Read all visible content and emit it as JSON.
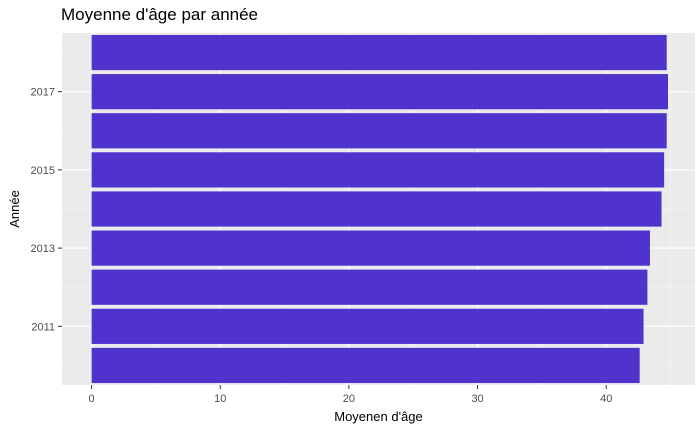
{
  "chart_data": {
    "type": "bar",
    "orientation": "horizontal",
    "title": "Moyenne d'âge par année",
    "xlabel": "Moyenen d'âge",
    "ylabel": "Année",
    "categories": [
      "2010",
      "2011",
      "2012",
      "2013",
      "2014",
      "2015",
      "2016",
      "2017",
      "2018"
    ],
    "values": [
      42.6,
      42.9,
      43.2,
      43.4,
      44.3,
      44.5,
      44.7,
      44.8,
      44.7
    ],
    "y_tick_labels": [
      "2011",
      "2013",
      "2015",
      "2017"
    ],
    "x_tick_labels": [
      "0",
      "10",
      "20",
      "30",
      "40"
    ],
    "xlim": [
      -2.3,
      46.9
    ],
    "grid": true,
    "colors": {
      "bar": "#4F33CC",
      "panel": "#EBEBEB",
      "grid_major": "#FFFFFF",
      "grid_minor": "#F5F5F5"
    }
  }
}
